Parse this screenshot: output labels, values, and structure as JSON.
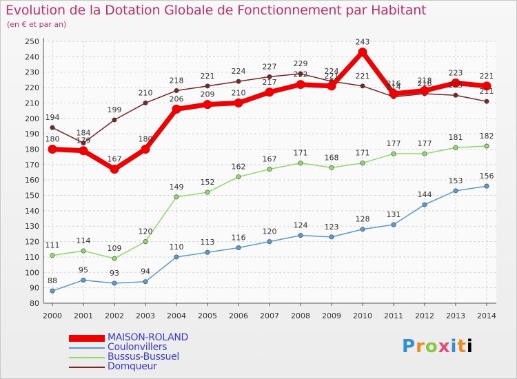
{
  "header": {
    "title": "Evolution de la Dotation Globale de Fonctionnement par Habitant",
    "subtitle": "(en € et par an)"
  },
  "brand": {
    "letters": [
      "P",
      "r",
      "o",
      "x",
      "i",
      "t",
      "i"
    ]
  },
  "chart_data": {
    "type": "line",
    "x": [
      "2000",
      "2001",
      "2002",
      "2003",
      "2004",
      "2005",
      "2006",
      "2007",
      "2008",
      "2009",
      "2010",
      "2011",
      "2012",
      "2013",
      "2014"
    ],
    "ylim": [
      80,
      250
    ],
    "yticks": [
      80,
      90,
      100,
      110,
      120,
      130,
      140,
      150,
      160,
      170,
      180,
      190,
      200,
      210,
      220,
      230,
      240,
      250
    ],
    "grid": true,
    "legend": "bottom-left",
    "series": [
      {
        "name": "MAISON-ROLAND",
        "color": "#ee0000",
        "values": [
          180,
          179,
          167,
          180,
          206,
          209,
          210,
          217,
          222,
          221,
          243,
          216,
          218,
          223,
          221
        ],
        "labels": [
          "180",
          "179",
          "167",
          "180",
          "206",
          "209",
          "210",
          "217",
          "222",
          "221",
          "243",
          "216",
          "218",
          "223",
          "221"
        ]
      },
      {
        "name": "Coulonvillers",
        "color": "#5a9ad0",
        "values": [
          88,
          95,
          93,
          94,
          110,
          113,
          116,
          120,
          124,
          123,
          128,
          131,
          144,
          153,
          156
        ],
        "labels": [
          "88",
          "95",
          "93",
          "94",
          "110",
          "113",
          "116",
          "120",
          "124",
          "123",
          "128",
          "131",
          "144",
          "153",
          "156"
        ]
      },
      {
        "name": "Bussus-Bussuel",
        "color": "#8fd86a",
        "values": [
          111,
          114,
          109,
          120,
          149,
          152,
          162,
          167,
          171,
          168,
          171,
          177,
          177,
          181,
          182
        ],
        "labels": [
          "111",
          "114",
          "109",
          "120",
          "149",
          "152",
          "162",
          "167",
          "171",
          "168",
          "171",
          "177",
          "177",
          "181",
          "182"
        ]
      },
      {
        "name": "Domqueur",
        "color": "#7a2424",
        "values": [
          194,
          184,
          199,
          210,
          218,
          221,
          224,
          227,
          229,
          224,
          221,
          214,
          216,
          215,
          211
        ],
        "labels": [
          "194",
          "184",
          "199",
          "210",
          "218",
          "221",
          "224",
          "227",
          "229",
          "224",
          "221",
          "214",
          "216",
          "215",
          "211"
        ]
      }
    ]
  }
}
